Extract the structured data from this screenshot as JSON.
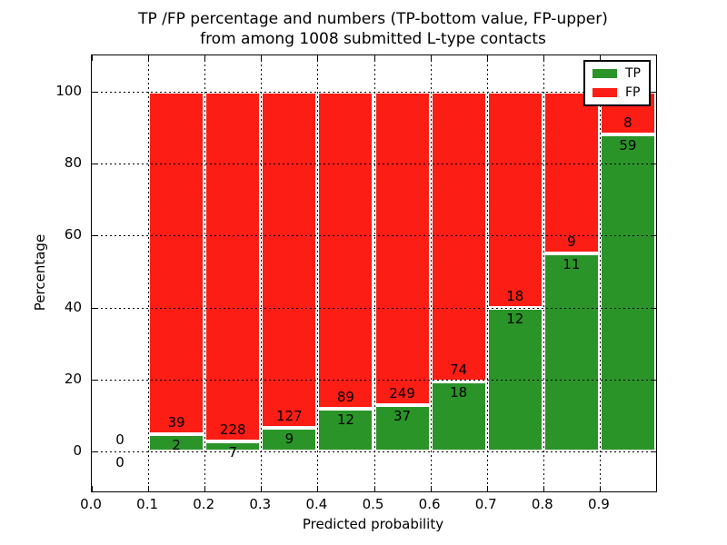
{
  "figure": {
    "title_line1": "TP /FP percentage and numbers (TP-bottom value, FP-upper)",
    "title_line2": "from among 1008 submitted L-type contacts"
  },
  "chart_data": {
    "type": "bar",
    "stacked": true,
    "title": "TP /FP percentage and numbers (TP-bottom value, FP-upper) from among 1008 submitted L-type contacts",
    "xlabel": "Predicted probability",
    "ylabel": "Percentage",
    "xlim": [
      0.0,
      1.0
    ],
    "ylim": [
      -11,
      110
    ],
    "bin_width": 0.1,
    "x_ticks": [
      {
        "value": 0.0,
        "label": "0.0"
      },
      {
        "value": 0.1,
        "label": "0.1"
      },
      {
        "value": 0.2,
        "label": "0.2"
      },
      {
        "value": 0.3,
        "label": "0.3"
      },
      {
        "value": 0.4,
        "label": "0.4"
      },
      {
        "value": 0.5,
        "label": "0.5"
      },
      {
        "value": 0.6,
        "label": "0.6"
      },
      {
        "value": 0.7,
        "label": "0.7"
      },
      {
        "value": 0.8,
        "label": "0.8"
      },
      {
        "value": 0.9,
        "label": "0.9"
      }
    ],
    "y_ticks": [
      {
        "value": 0,
        "label": "0"
      },
      {
        "value": 20,
        "label": "20"
      },
      {
        "value": 40,
        "label": "40"
      },
      {
        "value": 60,
        "label": "60"
      },
      {
        "value": 80,
        "label": "80"
      },
      {
        "value": 100,
        "label": "100"
      }
    ],
    "grid": "dotted",
    "grid_on": true,
    "legend_position": "upper right",
    "legend": {
      "entries": [
        {
          "label": "TP",
          "color": "#2a9428"
        },
        {
          "label": "FP",
          "color": "#fc1d14"
        }
      ]
    },
    "total_contacts": 1008,
    "bins": [
      {
        "x0": 0.0,
        "x1": 0.1,
        "tp": 0,
        "fp": 0
      },
      {
        "x0": 0.1,
        "x1": 0.2,
        "tp": 2,
        "fp": 39
      },
      {
        "x0": 0.2,
        "x1": 0.3,
        "tp": 7,
        "fp": 228
      },
      {
        "x0": 0.3,
        "x1": 0.4,
        "tp": 9,
        "fp": 127
      },
      {
        "x0": 0.4,
        "x1": 0.5,
        "tp": 12,
        "fp": 89
      },
      {
        "x0": 0.5,
        "x1": 0.6,
        "tp": 37,
        "fp": 249
      },
      {
        "x0": 0.6,
        "x1": 0.7,
        "tp": 18,
        "fp": 74
      },
      {
        "x0": 0.7,
        "x1": 0.8,
        "tp": 12,
        "fp": 18
      },
      {
        "x0": 0.8,
        "x1": 0.9,
        "tp": 11,
        "fp": 9
      },
      {
        "x0": 0.9,
        "x1": 1.0,
        "tp": 59,
        "fp": 8
      }
    ]
  },
  "colors": {
    "tp": "#2a9428",
    "fp": "#fc1d14",
    "bar_edge": "#ffffff",
    "grid": "#000000",
    "text": "#000000",
    "background": "#ffffff"
  }
}
